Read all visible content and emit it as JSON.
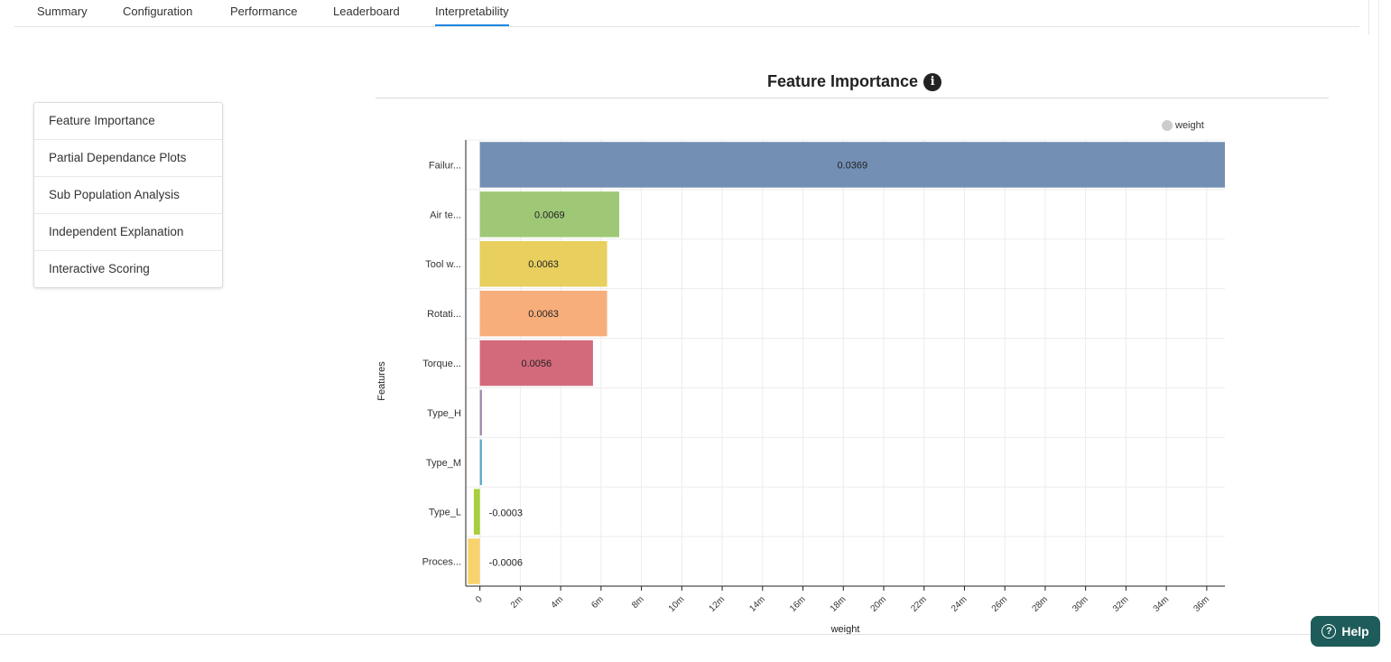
{
  "tabs": [
    {
      "label": "Summary",
      "active": false
    },
    {
      "label": "Configuration",
      "active": false
    },
    {
      "label": "Performance",
      "active": false
    },
    {
      "label": "Leaderboard",
      "active": false
    },
    {
      "label": "Interpretability",
      "active": true
    }
  ],
  "sidebar": {
    "items": [
      {
        "label": "Feature Importance"
      },
      {
        "label": "Partial Dependance Plots"
      },
      {
        "label": "Sub Population Analysis"
      },
      {
        "label": "Independent Explanation"
      },
      {
        "label": "Interactive Scoring"
      }
    ]
  },
  "title": "Feature Importance",
  "info_icon": "info-icon",
  "help": {
    "label": "Help",
    "icon": "question-circle-icon",
    "color": "#1d5c5a"
  },
  "chart_data": {
    "type": "bar",
    "orientation": "horizontal",
    "categories": [
      "Failur...",
      "Air te...",
      "Tool w...",
      "Rotati...",
      "Torque...",
      "Type_H",
      "Type_M",
      "Type_L",
      "Proces..."
    ],
    "series": [
      {
        "name": "weight",
        "values": [
          0.0369,
          0.0069,
          0.0063,
          0.0063,
          0.0056,
          0.0001,
          0.0001,
          -0.0003,
          -0.0006
        ],
        "labels": [
          "0.0369",
          "0.0069",
          "0.0063",
          "0.0063",
          "0.0056",
          "",
          "",
          "-0.0003",
          "-0.0006"
        ]
      }
    ],
    "colors": [
      "#748fb4",
      "#9ec876",
      "#e8cf5e",
      "#f8ae7b",
      "#d36a7c",
      "#a287ae",
      "#5aa6cc",
      "#a6cf3a",
      "#f8d36d"
    ],
    "xlabel": "weight",
    "ylabel": "Features",
    "xlim": [
      -0.0007,
      0.0369
    ],
    "xticks": [
      0,
      0.002,
      0.004,
      0.006,
      0.008,
      0.01,
      0.012,
      0.014,
      0.016,
      0.018,
      0.02,
      0.022,
      0.024,
      0.026,
      0.028,
      0.03,
      0.032,
      0.034,
      0.036
    ],
    "xtick_labels": [
      "0",
      "2m",
      "4m",
      "6m",
      "8m",
      "10m",
      "12m",
      "14m",
      "16m",
      "18m",
      "20m",
      "22m",
      "24m",
      "26m",
      "28m",
      "30m",
      "32m",
      "34m",
      "36m"
    ],
    "legend": {
      "position": "top-right",
      "entries": [
        "weight"
      ],
      "marker_color": "#cccccc"
    },
    "grid": true
  }
}
